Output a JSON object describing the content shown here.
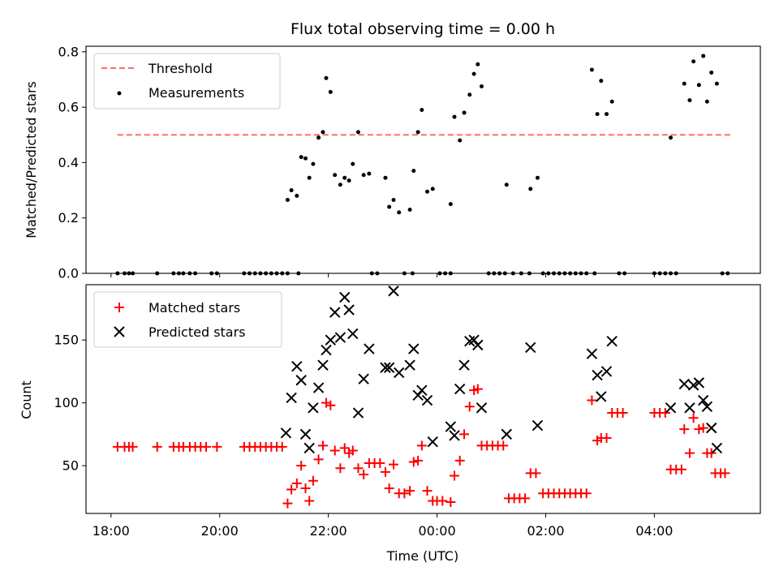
{
  "chart_data": [
    {
      "type": "scatter",
      "title": "Flux total observing time = 0.00 h",
      "xlabel": "",
      "ylabel": "Matched/Predicted stars",
      "xlim": [
        -0.46,
        11.95
      ],
      "ylim": [
        0,
        0.82
      ],
      "yticks": [
        0.0,
        0.2,
        0.4,
        0.6,
        0.8
      ],
      "ytick_labels": [
        "0.0",
        "0.2",
        "0.4",
        "0.6",
        "0.8"
      ],
      "grid": false,
      "legend": {
        "placement": "top-left",
        "entries": [
          "Threshold",
          "Measurements"
        ]
      },
      "colors": {
        "threshold": "#ff6b6b",
        "measurements": "#000000"
      },
      "threshold": {
        "name": "Threshold",
        "value": 0.5,
        "x_start": 0.12,
        "x_end": 11.42
      },
      "series": [
        {
          "name": "Measurements",
          "points": [
            [
              0.12,
              0
            ],
            [
              0.25,
              0
            ],
            [
              0.33,
              0
            ],
            [
              0.4,
              0
            ],
            [
              0.85,
              0
            ],
            [
              1.15,
              0
            ],
            [
              1.25,
              0
            ],
            [
              1.33,
              0
            ],
            [
              1.45,
              0
            ],
            [
              1.55,
              0
            ],
            [
              1.85,
              0
            ],
            [
              1.95,
              0
            ],
            [
              2.45,
              0
            ],
            [
              2.55,
              0
            ],
            [
              2.65,
              0
            ],
            [
              2.75,
              0
            ],
            [
              2.85,
              0
            ],
            [
              2.95,
              0
            ],
            [
              3.05,
              0
            ],
            [
              3.15,
              0
            ],
            [
              3.25,
              0
            ],
            [
              3.45,
              0
            ],
            [
              4.8,
              0
            ],
            [
              4.9,
              0
            ],
            [
              5.4,
              0
            ],
            [
              5.55,
              0
            ],
            [
              6.05,
              0
            ],
            [
              6.15,
              0
            ],
            [
              6.25,
              0
            ],
            [
              6.95,
              0
            ],
            [
              7.05,
              0
            ],
            [
              7.15,
              0
            ],
            [
              7.25,
              0
            ],
            [
              7.4,
              0
            ],
            [
              7.55,
              0
            ],
            [
              7.7,
              0
            ],
            [
              7.95,
              0
            ],
            [
              8.05,
              0
            ],
            [
              8.15,
              0
            ],
            [
              8.25,
              0
            ],
            [
              8.35,
              0
            ],
            [
              8.45,
              0
            ],
            [
              8.55,
              0
            ],
            [
              8.65,
              0
            ],
            [
              8.75,
              0
            ],
            [
              8.9,
              0
            ],
            [
              9.35,
              0
            ],
            [
              9.45,
              0
            ],
            [
              10.0,
              0
            ],
            [
              10.1,
              0
            ],
            [
              10.2,
              0
            ],
            [
              10.3,
              0
            ],
            [
              10.4,
              0
            ],
            [
              11.25,
              0
            ],
            [
              11.35,
              0
            ],
            [
              3.25,
              0.265
            ],
            [
              3.32,
              0.3
            ],
            [
              3.42,
              0.28
            ],
            [
              3.5,
              0.42
            ],
            [
              3.58,
              0.415
            ],
            [
              3.65,
              0.345
            ],
            [
              3.72,
              0.395
            ],
            [
              3.82,
              0.49
            ],
            [
              3.9,
              0.51
            ],
            [
              3.96,
              0.705
            ],
            [
              4.04,
              0.655
            ],
            [
              4.12,
              0.355
            ],
            [
              4.22,
              0.32
            ],
            [
              4.3,
              0.345
            ],
            [
              4.38,
              0.335
            ],
            [
              4.45,
              0.395
            ],
            [
              4.55,
              0.51
            ],
            [
              4.65,
              0.355
            ],
            [
              4.75,
              0.36
            ],
            [
              5.05,
              0.345
            ],
            [
              5.12,
              0.24
            ],
            [
              5.2,
              0.265
            ],
            [
              5.3,
              0.22
            ],
            [
              5.5,
              0.23
            ],
            [
              5.57,
              0.37
            ],
            [
              5.65,
              0.51
            ],
            [
              5.72,
              0.59
            ],
            [
              5.82,
              0.295
            ],
            [
              5.92,
              0.305
            ],
            [
              6.25,
              0.25
            ],
            [
              6.32,
              0.565
            ],
            [
              6.42,
              0.48
            ],
            [
              6.5,
              0.58
            ],
            [
              6.6,
              0.645
            ],
            [
              6.68,
              0.72
            ],
            [
              6.75,
              0.755
            ],
            [
              6.82,
              0.675
            ],
            [
              7.28,
              0.32
            ],
            [
              7.72,
              0.305
            ],
            [
              7.85,
              0.345
            ],
            [
              8.85,
              0.735
            ],
            [
              8.95,
              0.575
            ],
            [
              9.02,
              0.695
            ],
            [
              9.12,
              0.575
            ],
            [
              9.22,
              0.62
            ],
            [
              10.3,
              0.49
            ],
            [
              10.55,
              0.685
            ],
            [
              10.65,
              0.625
            ],
            [
              10.72,
              0.765
            ],
            [
              10.82,
              0.68
            ],
            [
              10.9,
              0.785
            ],
            [
              10.97,
              0.62
            ],
            [
              11.05,
              0.725
            ],
            [
              11.15,
              0.685
            ]
          ]
        }
      ]
    },
    {
      "type": "scatter",
      "title": "",
      "xlabel": "Time (UTC)",
      "ylabel": "Count",
      "xlim": [
        -0.46,
        11.95
      ],
      "ylim": [
        12,
        194
      ],
      "xticks": [
        0,
        2,
        4,
        6,
        8,
        10
      ],
      "xtick_labels": [
        "18:00",
        "20:00",
        "22:00",
        "00:00",
        "02:00",
        "04:00"
      ],
      "yticks": [
        50,
        100,
        150
      ],
      "ytick_labels": [
        "50",
        "100",
        "150"
      ],
      "grid": false,
      "legend": {
        "placement": "top-left",
        "entries": [
          "Matched stars",
          "Predicted stars"
        ]
      },
      "colors": {
        "matched": "#ff0000",
        "predicted": "#000000"
      },
      "series": [
        {
          "name": "Matched stars",
          "marker": "plus",
          "points": [
            [
              0.12,
              65
            ],
            [
              0.25,
              65
            ],
            [
              0.33,
              65
            ],
            [
              0.4,
              65
            ],
            [
              0.85,
              65
            ],
            [
              1.15,
              65
            ],
            [
              1.25,
              65
            ],
            [
              1.33,
              65
            ],
            [
              1.45,
              65
            ],
            [
              1.55,
              65
            ],
            [
              1.65,
              65
            ],
            [
              1.75,
              65
            ],
            [
              1.95,
              65
            ],
            [
              2.45,
              65
            ],
            [
              2.55,
              65
            ],
            [
              2.65,
              65
            ],
            [
              2.75,
              65
            ],
            [
              2.85,
              65
            ],
            [
              2.95,
              65
            ],
            [
              3.05,
              65
            ],
            [
              3.15,
              65
            ],
            [
              3.25,
              20
            ],
            [
              3.32,
              31
            ],
            [
              3.42,
              36
            ],
            [
              3.5,
              50
            ],
            [
              3.58,
              32
            ],
            [
              3.65,
              22
            ],
            [
              3.72,
              38
            ],
            [
              3.82,
              55
            ],
            [
              3.9,
              66
            ],
            [
              3.96,
              100
            ],
            [
              4.04,
              98
            ],
            [
              4.12,
              62
            ],
            [
              4.22,
              48
            ],
            [
              4.3,
              64
            ],
            [
              4.38,
              60
            ],
            [
              4.45,
              62
            ],
            [
              4.55,
              48
            ],
            [
              4.65,
              43
            ],
            [
              4.75,
              52
            ],
            [
              4.85,
              52
            ],
            [
              4.95,
              52
            ],
            [
              5.05,
              45
            ],
            [
              5.12,
              32
            ],
            [
              5.2,
              51
            ],
            [
              5.3,
              28
            ],
            [
              5.4,
              28
            ],
            [
              5.5,
              30
            ],
            [
              5.57,
              53
            ],
            [
              5.65,
              54
            ],
            [
              5.72,
              66
            ],
            [
              5.82,
              30
            ],
            [
              5.92,
              22
            ],
            [
              6.0,
              22
            ],
            [
              6.1,
              22
            ],
            [
              6.25,
              21
            ],
            [
              6.32,
              42
            ],
            [
              6.42,
              54
            ],
            [
              6.5,
              75
            ],
            [
              6.6,
              97
            ],
            [
              6.68,
              110
            ],
            [
              6.75,
              111
            ],
            [
              6.82,
              66
            ],
            [
              6.92,
              66
            ],
            [
              7.02,
              66
            ],
            [
              7.12,
              66
            ],
            [
              7.22,
              66
            ],
            [
              7.32,
              24
            ],
            [
              7.42,
              24
            ],
            [
              7.52,
              24
            ],
            [
              7.62,
              24
            ],
            [
              7.72,
              44
            ],
            [
              7.82,
              44
            ],
            [
              7.95,
              28
            ],
            [
              8.05,
              28
            ],
            [
              8.15,
              28
            ],
            [
              8.25,
              28
            ],
            [
              8.35,
              28
            ],
            [
              8.45,
              28
            ],
            [
              8.55,
              28
            ],
            [
              8.65,
              28
            ],
            [
              8.75,
              28
            ],
            [
              8.85,
              102
            ],
            [
              8.95,
              70
            ],
            [
              9.02,
              72
            ],
            [
              9.12,
              72
            ],
            [
              9.22,
              92
            ],
            [
              9.32,
              92
            ],
            [
              9.42,
              92
            ],
            [
              10.0,
              92
            ],
            [
              10.1,
              92
            ],
            [
              10.2,
              92
            ],
            [
              10.3,
              47
            ],
            [
              10.4,
              47
            ],
            [
              10.5,
              47
            ],
            [
              10.55,
              79
            ],
            [
              10.65,
              60
            ],
            [
              10.72,
              88
            ],
            [
              10.82,
              79
            ],
            [
              10.9,
              80
            ],
            [
              10.97,
              60
            ],
            [
              11.05,
              60
            ],
            [
              11.12,
              44
            ],
            [
              11.22,
              44
            ],
            [
              11.3,
              44
            ]
          ]
        },
        {
          "name": "Predicted stars",
          "marker": "x",
          "points": [
            [
              3.22,
              76
            ],
            [
              3.32,
              104
            ],
            [
              3.42,
              129
            ],
            [
              3.5,
              118
            ],
            [
              3.58,
              75
            ],
            [
              3.65,
              64
            ],
            [
              3.72,
              96
            ],
            [
              3.82,
              112
            ],
            [
              3.9,
              130
            ],
            [
              3.96,
              142
            ],
            [
              4.04,
              150
            ],
            [
              4.12,
              172
            ],
            [
              4.22,
              152
            ],
            [
              4.3,
              184
            ],
            [
              4.38,
              174
            ],
            [
              4.45,
              155
            ],
            [
              4.55,
              92
            ],
            [
              4.65,
              119
            ],
            [
              4.75,
              143
            ],
            [
              5.05,
              128
            ],
            [
              5.12,
              128
            ],
            [
              5.2,
              189
            ],
            [
              5.3,
              124
            ],
            [
              5.5,
              130
            ],
            [
              5.57,
              143
            ],
            [
              5.65,
              106
            ],
            [
              5.72,
              110
            ],
            [
              5.82,
              102
            ],
            [
              5.92,
              69
            ],
            [
              6.25,
              81
            ],
            [
              6.32,
              74
            ],
            [
              6.42,
              111
            ],
            [
              6.5,
              130
            ],
            [
              6.6,
              149
            ],
            [
              6.68,
              150
            ],
            [
              6.75,
              146
            ],
            [
              6.82,
              96
            ],
            [
              7.28,
              75
            ],
            [
              7.72,
              144
            ],
            [
              7.85,
              82
            ],
            [
              8.85,
              139
            ],
            [
              8.95,
              122
            ],
            [
              9.02,
              105
            ],
            [
              9.12,
              125
            ],
            [
              9.22,
              149
            ],
            [
              10.3,
              96
            ],
            [
              10.55,
              115
            ],
            [
              10.65,
              96
            ],
            [
              10.72,
              114
            ],
            [
              10.82,
              116
            ],
            [
              10.9,
              102
            ],
            [
              10.97,
              97
            ],
            [
              11.05,
              80
            ],
            [
              11.15,
              64
            ]
          ]
        }
      ]
    }
  ]
}
